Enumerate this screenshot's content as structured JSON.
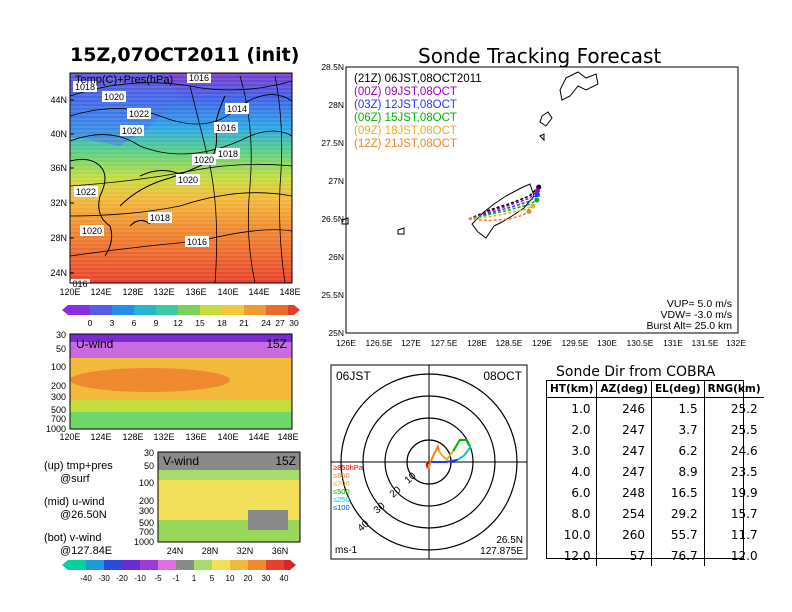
{
  "left": {
    "title": "15Z,07OCT2011 (init)",
    "map_label": "Temp(C)+Pres(hPa)",
    "lat_labels": [
      "44N",
      "40N",
      "36N",
      "32N",
      "28N",
      "24N"
    ],
    "lon_labels": [
      "120E",
      "124E",
      "128E",
      "132E",
      "136E",
      "140E",
      "144E",
      "148E"
    ],
    "isobar_labels": [
      "1018",
      "1020",
      "1022",
      "1020",
      "1016",
      "1014",
      "1016",
      "1018",
      "1020",
      "1020",
      "1022",
      "1018",
      "1020",
      "1016",
      "016"
    ],
    "temp_scale": [
      "0",
      "3",
      "6",
      "9",
      "12",
      "15",
      "18",
      "21",
      "24",
      "27",
      "30"
    ],
    "u_panel": {
      "label": "U-wind",
      "time": "15Z",
      "levels": [
        "30",
        "50",
        "100",
        "200",
        "300",
        "500",
        "700",
        "1000"
      ]
    },
    "v_panel": {
      "label": "V-wind",
      "time": "15Z",
      "levels": [
        "30",
        "50",
        "100",
        "200",
        "300",
        "500",
        "700",
        "1000"
      ],
      "lat_labels": [
        "24N",
        "28N",
        "32N",
        "36N"
      ]
    },
    "wind_scale": [
      "-40",
      "-30",
      "-20",
      "-10",
      "-5",
      "-1",
      "1",
      "5",
      "10",
      "20",
      "30",
      "40"
    ],
    "notes": [
      {
        "a": "(up) tmp+pres",
        "b": "@surf"
      },
      {
        "a": "(mid) u-wind",
        "b": "@26.50N"
      },
      {
        "a": "(bot) v-wind",
        "b": "@127.84E"
      }
    ]
  },
  "tracking": {
    "title": "Sonde Tracking Forecast",
    "times": [
      {
        "label": "(21Z)  06JST,08OCT2011",
        "color": "#000000"
      },
      {
        "label": "(00Z)  09JST,08OCT",
        "color": "#a000c8"
      },
      {
        "label": "(03Z)  12JST,08OCT",
        "color": "#1e3cff"
      },
      {
        "label": "(06Z)  15JST,08OCT",
        "color": "#00b400"
      },
      {
        "label": "(09Z)  18JST,08OCT",
        "color": "#e6af2d"
      },
      {
        "label": "(12Z)  21JST,08OCT",
        "color": "#f08228"
      }
    ],
    "lat_labels": [
      "28.5N",
      "28N",
      "27.5N",
      "27N",
      "26.5N",
      "26N",
      "25.5N",
      "25N"
    ],
    "lon_labels": [
      "126E",
      "126.5E",
      "127E",
      "127.5E",
      "128E",
      "128.5E",
      "129E",
      "129.5E",
      "130E",
      "130.5E",
      "131E",
      "131.5E",
      "132E"
    ],
    "params": [
      "VUP=  5.0  m/s",
      "VDW= -3.0  m/s",
      "Burst Alt=  25.0  km"
    ]
  },
  "hodo": {
    "time": "06JST",
    "date": "08OCT",
    "ring_labels": [
      "10",
      "20",
      "30",
      "40"
    ],
    "level_legend": [
      {
        "label": "≥850hPa",
        "color": "#e60000"
      },
      {
        "label": "≤850",
        "color": "#f08228"
      },
      {
        "label": "≤700",
        "color": "#e6af2d"
      },
      {
        "label": "≤500",
        "color": "#00b400"
      },
      {
        "label": "≤250",
        "color": "#00c8c8"
      },
      {
        "label": "≤100",
        "color": "#1e3cff"
      }
    ],
    "unit": "ms-1",
    "lat": "26.5N",
    "lon": "127.875E"
  },
  "sonde_table": {
    "title": "Sonde Dir from COBRA",
    "headers": [
      "HT(km)",
      "AZ(deg)",
      "EL(deg)",
      "RNG(km)"
    ],
    "rows": [
      [
        "1.0",
        "246",
        "1.5",
        "25.2"
      ],
      [
        "2.0",
        "247",
        "3.7",
        "25.5"
      ],
      [
        "3.0",
        "247",
        "6.2",
        "24.6"
      ],
      [
        "4.0",
        "247",
        "8.9",
        "23.5"
      ],
      [
        "6.0",
        "248",
        "16.5",
        "19.9"
      ],
      [
        "8.0",
        "254",
        "29.2",
        "15.7"
      ],
      [
        "10.0",
        "260",
        "55.7",
        "11.7"
      ],
      [
        "12.0",
        "57",
        "76.7",
        "12.0"
      ]
    ]
  },
  "chart_data": [
    {
      "type": "heatmap",
      "title": "15Z,07OCT2011 (init)",
      "label": "Temp(C)+Pres(hPa)",
      "x_ticks": [
        "120E",
        "124E",
        "128E",
        "132E",
        "136E",
        "140E",
        "144E",
        "148E"
      ],
      "y_ticks": [
        "44N",
        "40N",
        "36N",
        "32N",
        "28N",
        "24N"
      ],
      "colorbar": [
        0,
        3,
        6,
        9,
        12,
        15,
        18,
        21,
        24,
        27,
        30
      ],
      "isobars_hPa": [
        1014,
        1016,
        1018,
        1020,
        1022
      ]
    },
    {
      "type": "heatmap",
      "label": "U-wind",
      "time": "15Z",
      "x_ticks": [
        "120E",
        "124E",
        "128E",
        "132E",
        "136E",
        "140E",
        "144E",
        "148E"
      ],
      "y_ticks": [
        30,
        50,
        100,
        200,
        300,
        500,
        700,
        1000
      ],
      "colorbar": [
        -40,
        -30,
        -20,
        -10,
        -5,
        -1,
        1,
        5,
        10,
        20,
        30,
        40
      ]
    },
    {
      "type": "heatmap",
      "label": "V-wind",
      "time": "15Z",
      "x_ticks": [
        "24N",
        "28N",
        "32N",
        "36N"
      ],
      "y_ticks": [
        30,
        50,
        100,
        200,
        300,
        500,
        700,
        1000
      ],
      "colorbar": [
        -40,
        -30,
        -20,
        -10,
        -5,
        -1,
        1,
        5,
        10,
        20,
        30,
        40
      ]
    },
    {
      "type": "line",
      "title": "Sonde Tracking Forecast",
      "xlim": [
        126,
        132
      ],
      "ylim": [
        25,
        28.5
      ],
      "series": [
        {
          "name": "(21Z)  06JST,08OCT2011",
          "color": "#000000",
          "x": [
            127.88,
            128.2,
            128.5,
            128.8,
            128.95
          ],
          "y": [
            26.5,
            26.62,
            26.7,
            26.8,
            26.92
          ]
        },
        {
          "name": "(00Z)  09JST,08OCT",
          "color": "#a000c8",
          "x": [
            127.88,
            128.2,
            128.5,
            128.8,
            128.93
          ],
          "y": [
            26.5,
            26.6,
            26.68,
            26.77,
            26.87
          ]
        },
        {
          "name": "(03Z)  12JST,08OCT",
          "color": "#1e3cff",
          "x": [
            127.88,
            128.2,
            128.5,
            128.8,
            128.93
          ],
          "y": [
            26.5,
            26.58,
            26.65,
            26.73,
            26.82
          ]
        },
        {
          "name": "(06Z)  15JST,08OCT",
          "color": "#00b400",
          "x": [
            127.88,
            128.2,
            128.5,
            128.8,
            128.92
          ],
          "y": [
            26.5,
            26.56,
            26.62,
            26.69,
            26.75
          ]
        },
        {
          "name": "(09Z)  18JST,08OCT",
          "color": "#e6af2d",
          "x": [
            127.88,
            128.2,
            128.5,
            128.75,
            128.86
          ],
          "y": [
            26.5,
            26.53,
            26.58,
            26.63,
            26.67
          ]
        },
        {
          "name": "(12Z)  21JST,08OCT",
          "color": "#f08228",
          "x": [
            127.88,
            128.2,
            128.5,
            128.7,
            128.8
          ],
          "y": [
            26.5,
            26.48,
            26.5,
            26.55,
            26.6
          ]
        }
      ]
    },
    {
      "type": "line",
      "label": "hodograph",
      "units": "ms-1",
      "series": [
        {
          "name": "≥850hPa",
          "color": "#e60000",
          "x": [
            0,
            -1,
            -0.5
          ],
          "y": [
            0,
            -1,
            -3
          ]
        },
        {
          "name": "≤850",
          "color": "#f08228",
          "x": [
            -0.5,
            2,
            4,
            4.5
          ],
          "y": [
            -3,
            3,
            7,
            5
          ]
        },
        {
          "name": "≤700",
          "color": "#e6af2d",
          "x": [
            4.5,
            6,
            8,
            11
          ],
          "y": [
            5,
            3,
            1,
            5
          ]
        },
        {
          "name": "≤500",
          "color": "#00b400",
          "x": [
            11,
            14,
            17,
            18,
            19
          ],
          "y": [
            5,
            10,
            10,
            8,
            7
          ]
        },
        {
          "name": "≤250",
          "color": "#00c8c8",
          "x": [
            19,
            16,
            13
          ],
          "y": [
            7,
            3,
            1
          ]
        },
        {
          "name": "≤100",
          "color": "#1e3cff",
          "x": [
            13,
            8,
            3,
            1
          ],
          "y": [
            1,
            0,
            0,
            0
          ]
        }
      ]
    }
  ]
}
